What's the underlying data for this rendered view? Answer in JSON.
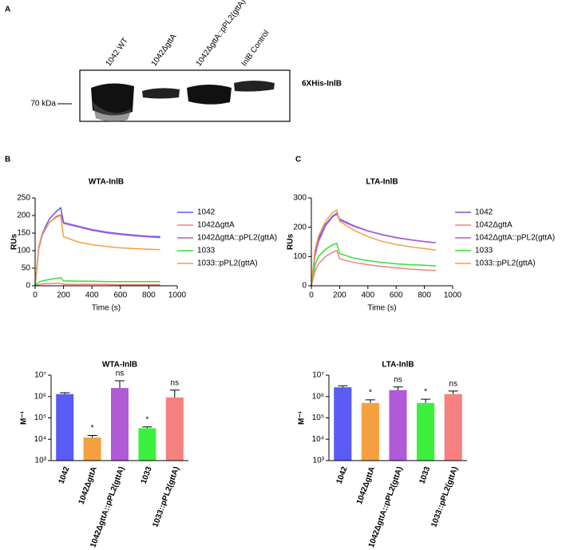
{
  "panels": [
    "A",
    "B",
    "C"
  ],
  "blot": {
    "lanes": [
      "1042 WT",
      "1042ΔgttA",
      "1042ΔgttA::pPL2(gttA)",
      "InlB Control"
    ],
    "band_label": "6XHis-InlB",
    "marker": "70 kDa"
  },
  "chart_data": [
    {
      "type": "line",
      "title": "WTA-InlB",
      "xlabel": "Time (s)",
      "ylabel": "RUs",
      "x": [
        0,
        25,
        50,
        100,
        150,
        180,
        200,
        300,
        400,
        500,
        600,
        700,
        800,
        880
      ],
      "xlim": [
        0,
        1000
      ],
      "xticks": [
        0,
        200,
        400,
        600,
        800,
        1000
      ],
      "ylim": [
        0,
        250
      ],
      "yticks": [
        0,
        50,
        100,
        150,
        200,
        250
      ],
      "series": [
        {
          "name": "1042",
          "color": "#5b5bf0",
          "values": [
            0,
            110,
            150,
            190,
            212,
            222,
            180,
            170,
            160,
            153,
            148,
            144,
            141,
            140
          ]
        },
        {
          "name": "1042ΔgttA",
          "color": "#f08080",
          "values": [
            0,
            3,
            5,
            6,
            7,
            7,
            4,
            4,
            4,
            4,
            3,
            3,
            3,
            3
          ]
        },
        {
          "name": "1042ΔgttA::pPL2(gttA)",
          "color": "#b05ad8",
          "values": [
            0,
            105,
            145,
            180,
            198,
            202,
            178,
            168,
            158,
            151,
            146,
            142,
            139,
            137
          ]
        },
        {
          "name": "1033",
          "color": "#33e033",
          "values": [
            0,
            10,
            14,
            18,
            21,
            23,
            14,
            13,
            13,
            12,
            12,
            12,
            12,
            12
          ]
        },
        {
          "name": "1033::pPL2(gttA)",
          "color": "#f5a040",
          "values": [
            0,
            110,
            150,
            180,
            195,
            200,
            140,
            125,
            117,
            112,
            108,
            106,
            104,
            103
          ]
        }
      ]
    },
    {
      "type": "line",
      "title": "LTA-InlB",
      "xlabel": "Time (s)",
      "ylabel": "RUs",
      "x": [
        0,
        25,
        50,
        100,
        150,
        180,
        200,
        300,
        400,
        500,
        600,
        700,
        800,
        880
      ],
      "xlim": [
        0,
        1000
      ],
      "xticks": [
        0,
        200,
        400,
        600,
        800,
        1000
      ],
      "ylim": [
        0,
        300
      ],
      "yticks": [
        0,
        100,
        200,
        300
      ],
      "series": [
        {
          "name": "1042",
          "color": "#5b5bf0",
          "values": [
            0,
            110,
            160,
            210,
            238,
            248,
            228,
            205,
            188,
            175,
            165,
            157,
            151,
            147
          ]
        },
        {
          "name": "1042ΔgttA",
          "color": "#f08080",
          "values": [
            0,
            50,
            75,
            100,
            115,
            120,
            92,
            80,
            72,
            66,
            61,
            57,
            54,
            52
          ]
        },
        {
          "name": "1042ΔgttA::pPL2(gttA)",
          "color": "#b05ad8",
          "values": [
            0,
            100,
            150,
            205,
            235,
            245,
            225,
            203,
            187,
            174,
            164,
            157,
            151,
            147
          ]
        },
        {
          "name": "1033",
          "color": "#33e033",
          "values": [
            0,
            70,
            100,
            125,
            140,
            145,
            110,
            95,
            86,
            80,
            75,
            72,
            70,
            68
          ]
        },
        {
          "name": "1033::pPL2(gttA)",
          "color": "#f5a040",
          "values": [
            0,
            120,
            170,
            220,
            250,
            258,
            220,
            190,
            168,
            152,
            141,
            133,
            127,
            122
          ]
        }
      ]
    },
    {
      "type": "bar",
      "title": "WTA-InlB",
      "ylabel": "M⁻¹",
      "log": true,
      "categories": [
        "1042",
        "1042ΔgttA",
        "1042ΔgttA::pPL2(gttA)",
        "1033",
        "1033::pPL2(gttA)"
      ],
      "values": [
        1300000,
        12000,
        2500000,
        33000,
        900000
      ],
      "errors": [
        200000,
        3000,
        3000000,
        5000,
        1100000
      ],
      "annotations": [
        null,
        "*",
        "ns",
        "*",
        "ns"
      ],
      "colors": [
        "#5b5bf5",
        "#f5a040",
        "#b05ad8",
        "#3ef03e",
        "#f78080"
      ],
      "ylim": [
        1000,
        10000000
      ],
      "yticks": [
        {
          "value": 1000,
          "label": "10³"
        },
        {
          "value": 10000,
          "label": "10⁴"
        },
        {
          "value": 100000,
          "label": "10⁵"
        },
        {
          "value": 1000000,
          "label": "10⁶"
        },
        {
          "value": 10000000,
          "label": "10⁷"
        }
      ]
    },
    {
      "type": "bar",
      "title": "LTA-InlB",
      "ylabel": "M⁻¹",
      "log": true,
      "categories": [
        "1042",
        "1042ΔgttA",
        "1042ΔgttA::pPL2(gttA)",
        "1033",
        "1033::pPL2(gttA)"
      ],
      "values": [
        2700000,
        500000,
        2000000,
        500000,
        1300000
      ],
      "errors": [
        500000,
        200000,
        800000,
        250000,
        500000
      ],
      "annotations": [
        null,
        "*",
        "ns",
        "*",
        "ns"
      ],
      "colors": [
        "#5b5bf5",
        "#f5a040",
        "#b05ad8",
        "#3ef03e",
        "#f78080"
      ],
      "ylim": [
        1000,
        10000000
      ],
      "yticks": [
        {
          "value": 1000,
          "label": "10³"
        },
        {
          "value": 10000,
          "label": "10⁴"
        },
        {
          "value": 100000,
          "label": "10⁵"
        },
        {
          "value": 1000000,
          "label": "10⁶"
        },
        {
          "value": 10000000,
          "label": "10⁷"
        }
      ]
    }
  ]
}
